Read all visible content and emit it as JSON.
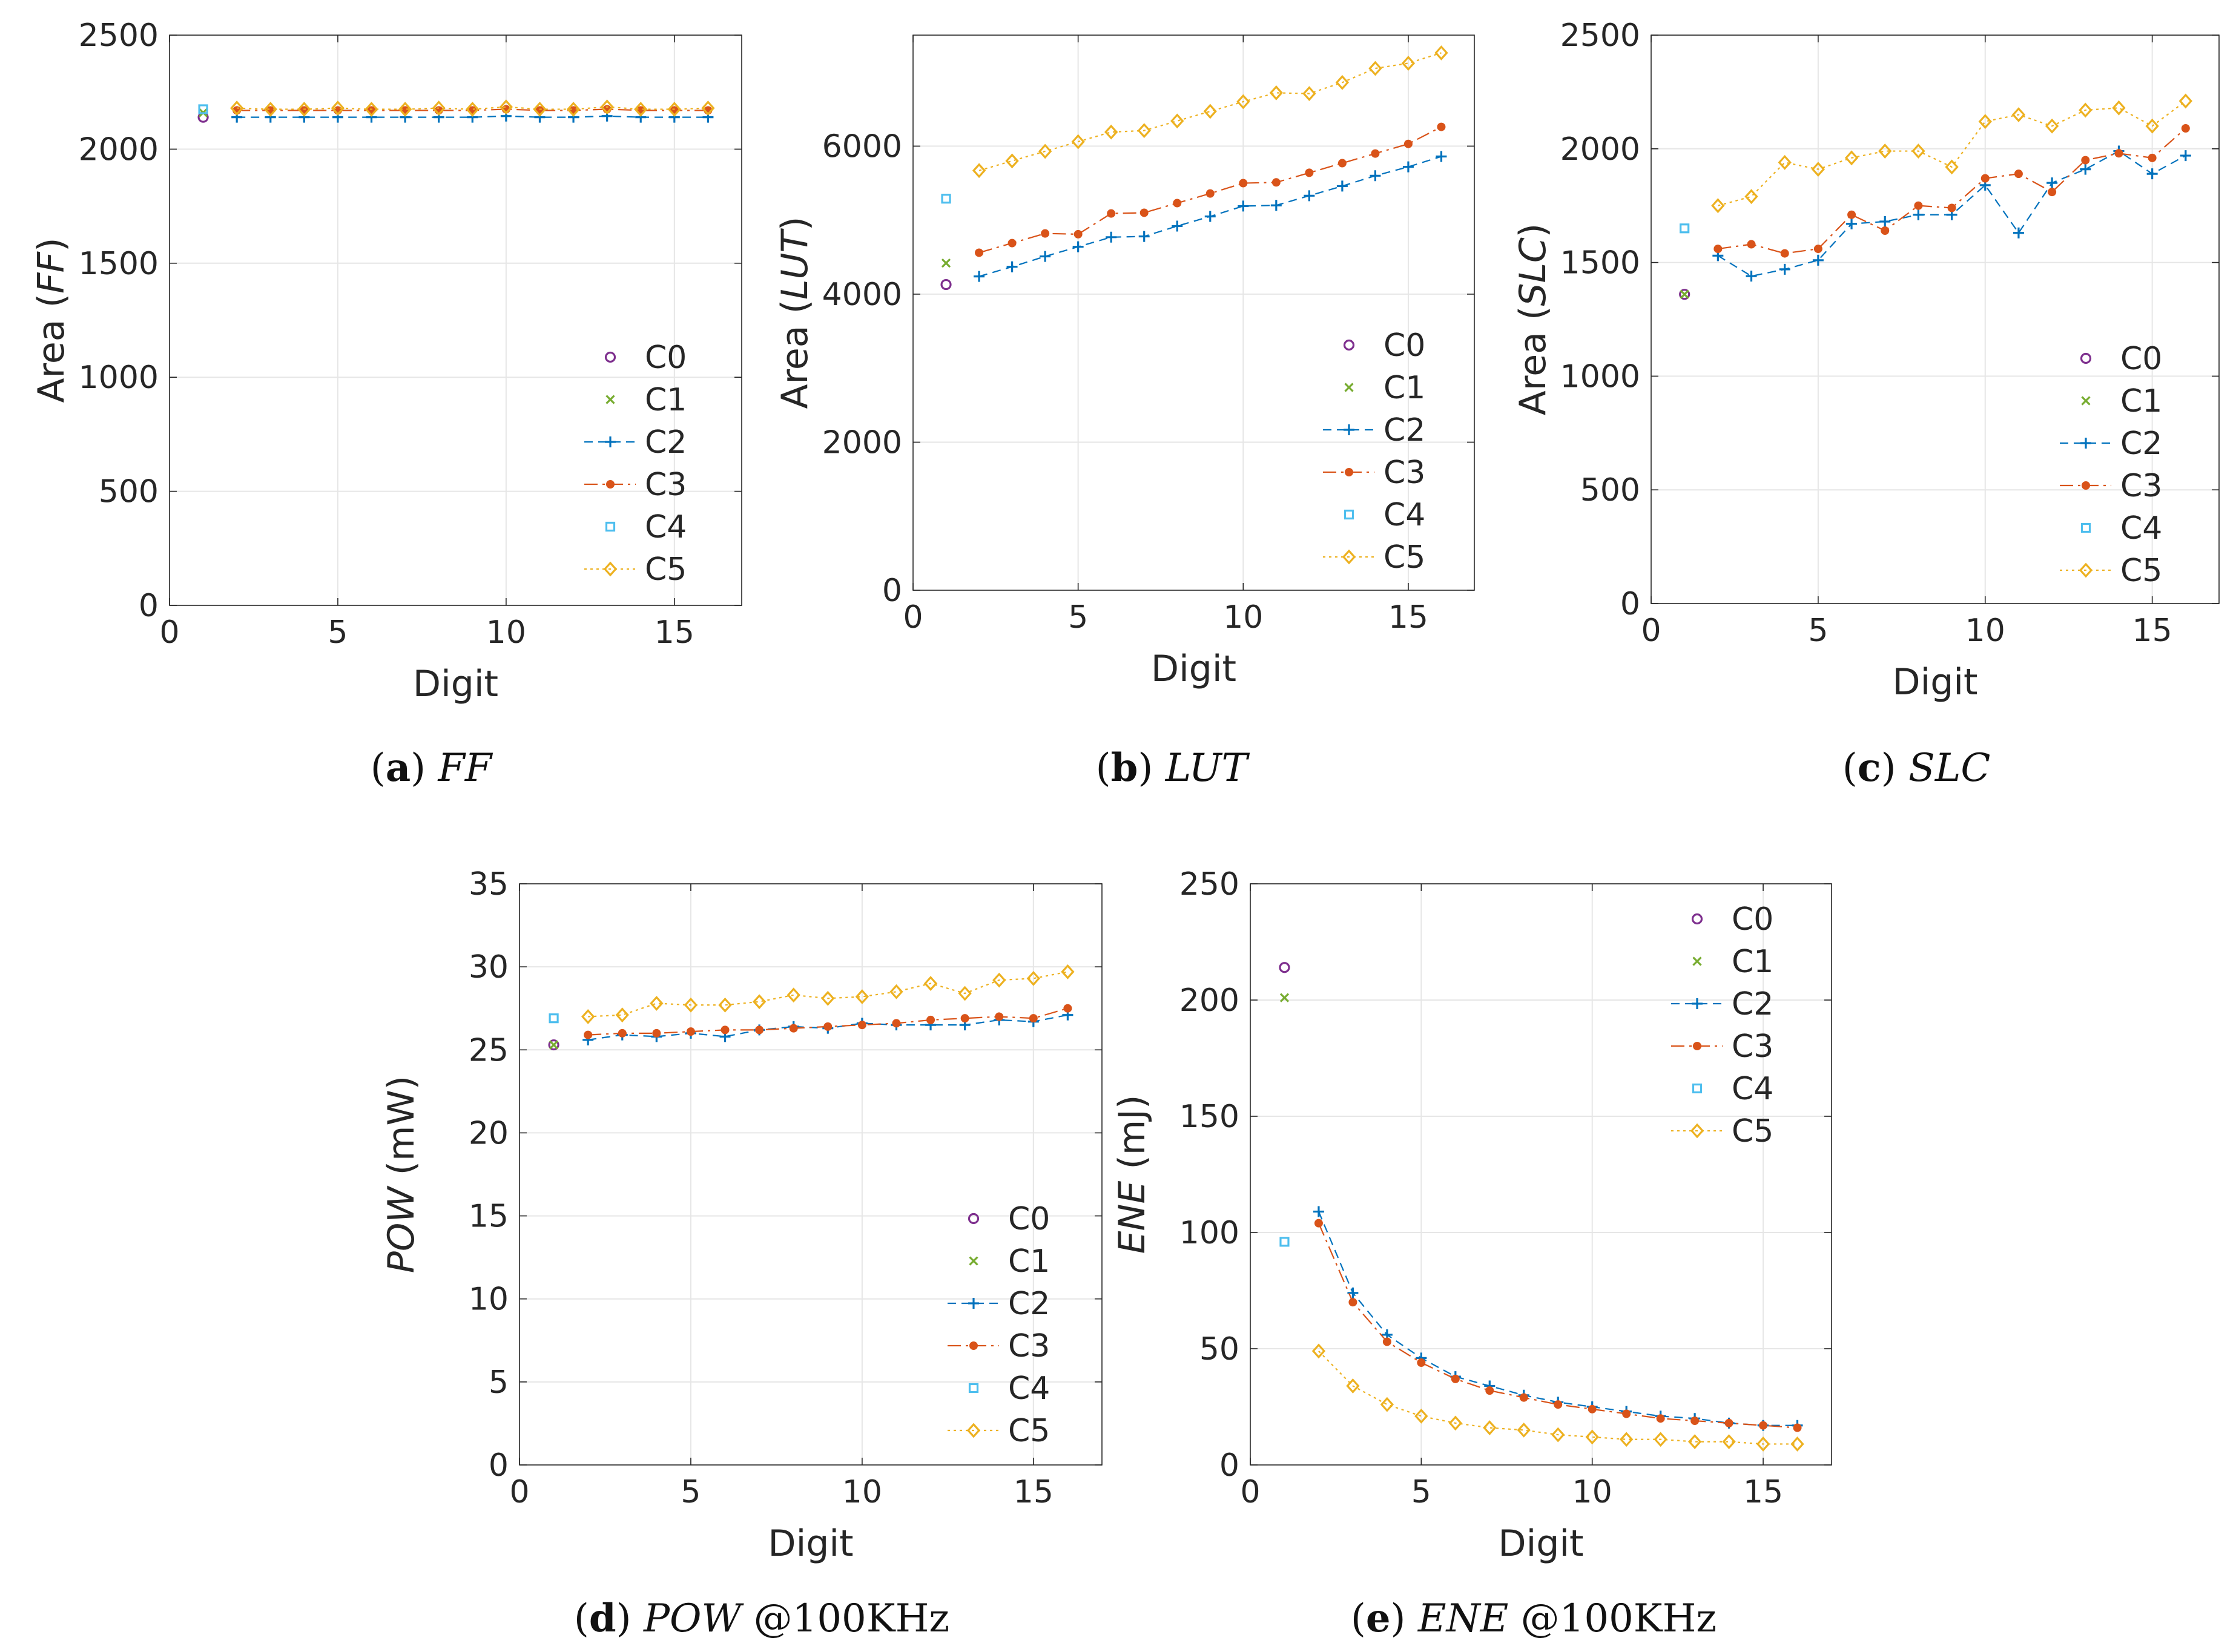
{
  "colors": {
    "C0": "#7e2f8e",
    "C1": "#77ac30",
    "C2": "#0072bd",
    "C3": "#d95319",
    "C4": "#4dbeee",
    "C5": "#edb120",
    "grid": "#e6e6e6",
    "axis": "#262626"
  },
  "chart_data": [
    {
      "id": "ff",
      "type": "line",
      "caption": {
        "label": "a",
        "rest": "FF"
      },
      "xlabel": "Digit",
      "ylabel_prefix": "Area (",
      "ylabel_italic": "FF",
      "ylabel_suffix": ")",
      "xlim": [
        0,
        17
      ],
      "ylim": [
        0,
        2500
      ],
      "xticks": [
        0,
        5,
        10,
        15
      ],
      "yticks": [
        0,
        500,
        1000,
        1500,
        2000,
        2500
      ],
      "legend_position": "bottom-right",
      "series": [
        {
          "name": "C0",
          "marker": "circle",
          "x": [
            1
          ],
          "y": [
            2140
          ]
        },
        {
          "name": "C1",
          "marker": "x",
          "x": [
            1
          ],
          "y": [
            2160
          ]
        },
        {
          "name": "C2",
          "marker": "plus",
          "x": [
            2,
            3,
            4,
            5,
            6,
            7,
            8,
            9,
            10,
            11,
            12,
            13,
            14,
            15,
            16
          ],
          "y": [
            2140,
            2140,
            2140,
            2140,
            2140,
            2140,
            2140,
            2140,
            2145,
            2140,
            2140,
            2145,
            2140,
            2140,
            2140
          ]
        },
        {
          "name": "C3",
          "marker": "dot",
          "x": [
            2,
            3,
            4,
            5,
            6,
            7,
            8,
            9,
            10,
            11,
            12,
            13,
            14,
            15,
            16
          ],
          "y": [
            2170,
            2170,
            2170,
            2170,
            2170,
            2170,
            2170,
            2170,
            2175,
            2170,
            2170,
            2175,
            2170,
            2170,
            2170
          ]
        },
        {
          "name": "C4",
          "marker": "square",
          "x": [
            1
          ],
          "y": [
            2175
          ]
        },
        {
          "name": "C5",
          "marker": "diamond",
          "x": [
            2,
            3,
            4,
            5,
            6,
            7,
            8,
            9,
            10,
            11,
            12,
            13,
            14,
            15,
            16
          ],
          "y": [
            2180,
            2175,
            2175,
            2180,
            2175,
            2175,
            2180,
            2175,
            2185,
            2175,
            2175,
            2185,
            2175,
            2175,
            2180
          ]
        }
      ]
    },
    {
      "id": "lut",
      "type": "line",
      "caption": {
        "label": "b",
        "rest": "LUT"
      },
      "xlabel": "Digit",
      "ylabel_prefix": "Area (",
      "ylabel_italic": "LUT",
      "ylabel_suffix": ")",
      "xlim": [
        0,
        17
      ],
      "ylim": [
        0,
        7500
      ],
      "xticks": [
        0,
        5,
        10,
        15
      ],
      "yticks": [
        0,
        2000,
        4000,
        6000
      ],
      "legend_position": "bottom-right",
      "series": [
        {
          "name": "C0",
          "marker": "circle",
          "x": [
            1
          ],
          "y": [
            4130
          ]
        },
        {
          "name": "C1",
          "marker": "x",
          "x": [
            1
          ],
          "y": [
            4420
          ]
        },
        {
          "name": "C2",
          "marker": "plus",
          "x": [
            2,
            3,
            4,
            5,
            6,
            7,
            8,
            9,
            10,
            11,
            12,
            13,
            14,
            15,
            16
          ],
          "y": [
            4240,
            4370,
            4510,
            4640,
            4770,
            4780,
            4920,
            5050,
            5190,
            5200,
            5330,
            5460,
            5600,
            5720,
            5860
          ]
        },
        {
          "name": "C3",
          "marker": "dot",
          "x": [
            2,
            3,
            4,
            5,
            6,
            7,
            8,
            9,
            10,
            11,
            12,
            13,
            14,
            15,
            16
          ],
          "y": [
            4560,
            4690,
            4820,
            4810,
            5090,
            5100,
            5230,
            5360,
            5500,
            5510,
            5640,
            5770,
            5900,
            6030,
            6260
          ]
        },
        {
          "name": "C4",
          "marker": "square",
          "x": [
            1
          ],
          "y": [
            5290
          ]
        },
        {
          "name": "C5",
          "marker": "diamond",
          "x": [
            2,
            3,
            4,
            5,
            6,
            7,
            8,
            9,
            10,
            11,
            12,
            13,
            14,
            15,
            16
          ],
          "y": [
            5670,
            5800,
            5930,
            6060,
            6190,
            6210,
            6340,
            6470,
            6600,
            6720,
            6710,
            6860,
            7050,
            7120,
            7260
          ]
        }
      ]
    },
    {
      "id": "slc",
      "type": "line",
      "caption": {
        "label": "c",
        "rest": "SLC"
      },
      "xlabel": "Digit",
      "ylabel_prefix": "Area (",
      "ylabel_italic": "SLC",
      "ylabel_suffix": ")",
      "xlim": [
        0,
        17
      ],
      "ylim": [
        0,
        2500
      ],
      "xticks": [
        0,
        5,
        10,
        15
      ],
      "yticks": [
        0,
        500,
        1000,
        1500,
        2000,
        2500
      ],
      "legend_position": "bottom-right",
      "series": [
        {
          "name": "C0",
          "marker": "circle",
          "x": [
            1
          ],
          "y": [
            1360
          ]
        },
        {
          "name": "C1",
          "marker": "x",
          "x": [
            1
          ],
          "y": [
            1360
          ]
        },
        {
          "name": "C2",
          "marker": "plus",
          "x": [
            2,
            3,
            4,
            5,
            6,
            7,
            8,
            9,
            10,
            11,
            12,
            13,
            14,
            15,
            16
          ],
          "y": [
            1530,
            1440,
            1470,
            1510,
            1670,
            1680,
            1710,
            1710,
            1840,
            1630,
            1850,
            1910,
            1990,
            1890,
            1970
          ]
        },
        {
          "name": "C3",
          "marker": "dot",
          "x": [
            2,
            3,
            4,
            5,
            6,
            7,
            8,
            9,
            10,
            11,
            12,
            13,
            14,
            15,
            16
          ],
          "y": [
            1560,
            1580,
            1540,
            1560,
            1710,
            1640,
            1750,
            1740,
            1870,
            1890,
            1810,
            1950,
            1980,
            1960,
            2090
          ]
        },
        {
          "name": "C4",
          "marker": "square",
          "x": [
            1
          ],
          "y": [
            1650
          ]
        },
        {
          "name": "C5",
          "marker": "diamond",
          "x": [
            2,
            3,
            4,
            5,
            6,
            7,
            8,
            9,
            10,
            11,
            12,
            13,
            14,
            15,
            16
          ],
          "y": [
            1750,
            1790,
            1940,
            1910,
            1960,
            1990,
            1990,
            1920,
            2120,
            2150,
            2100,
            2170,
            2180,
            2100,
            2210
          ]
        }
      ]
    },
    {
      "id": "pow",
      "type": "line",
      "caption": {
        "label": "d",
        "rest": "POW",
        "tail": " @100KHz"
      },
      "xlabel": "Digit",
      "ylabel_prefix": "",
      "ylabel_italic": "POW",
      "ylabel_suffix": " (mW)",
      "xlim": [
        0,
        17
      ],
      "ylim": [
        0,
        35
      ],
      "xticks": [
        0,
        5,
        10,
        15
      ],
      "yticks": [
        0,
        5,
        10,
        15,
        20,
        25,
        30,
        35
      ],
      "legend_position": "bottom-right",
      "series": [
        {
          "name": "C0",
          "marker": "circle",
          "x": [
            1
          ],
          "y": [
            25.3
          ]
        },
        {
          "name": "C1",
          "marker": "x",
          "x": [
            1
          ],
          "y": [
            25.3
          ]
        },
        {
          "name": "C2",
          "marker": "plus",
          "x": [
            2,
            3,
            4,
            5,
            6,
            7,
            8,
            9,
            10,
            11,
            12,
            13,
            14,
            15,
            16
          ],
          "y": [
            25.6,
            25.9,
            25.8,
            26.0,
            25.8,
            26.2,
            26.4,
            26.3,
            26.6,
            26.5,
            26.5,
            26.5,
            26.8,
            26.7,
            27.1
          ]
        },
        {
          "name": "C3",
          "marker": "dot",
          "x": [
            2,
            3,
            4,
            5,
            6,
            7,
            8,
            9,
            10,
            11,
            12,
            13,
            14,
            15,
            16
          ],
          "y": [
            25.9,
            26.0,
            26.0,
            26.1,
            26.2,
            26.2,
            26.3,
            26.4,
            26.5,
            26.6,
            26.8,
            26.9,
            27.0,
            26.9,
            27.5
          ]
        },
        {
          "name": "C4",
          "marker": "square",
          "x": [
            1
          ],
          "y": [
            26.9
          ]
        },
        {
          "name": "C5",
          "marker": "diamond",
          "x": [
            2,
            3,
            4,
            5,
            6,
            7,
            8,
            9,
            10,
            11,
            12,
            13,
            14,
            15,
            16
          ],
          "y": [
            27.0,
            27.1,
            27.8,
            27.7,
            27.7,
            27.9,
            28.3,
            28.1,
            28.2,
            28.5,
            29.0,
            28.4,
            29.2,
            29.3,
            29.7
          ]
        }
      ]
    },
    {
      "id": "ene",
      "type": "line",
      "caption": {
        "label": "e",
        "rest": "ENE",
        "tail": " @100KHz"
      },
      "xlabel": "Digit",
      "ylabel_prefix": "",
      "ylabel_italic": "ENE",
      "ylabel_suffix": " (mJ)",
      "xlim": [
        0,
        17
      ],
      "ylim": [
        0,
        250
      ],
      "xticks": [
        0,
        5,
        10,
        15
      ],
      "yticks": [
        0,
        50,
        100,
        150,
        200,
        250
      ],
      "legend_position": "top-right",
      "series": [
        {
          "name": "C0",
          "marker": "circle",
          "x": [
            1
          ],
          "y": [
            214
          ]
        },
        {
          "name": "C1",
          "marker": "x",
          "x": [
            1
          ],
          "y": [
            201
          ]
        },
        {
          "name": "C2",
          "marker": "plus",
          "x": [
            2,
            3,
            4,
            5,
            6,
            7,
            8,
            9,
            10,
            11,
            12,
            13,
            14,
            15,
            16
          ],
          "y": [
            109,
            74,
            56,
            46,
            38,
            34,
            30,
            27,
            25,
            23,
            21,
            20,
            18,
            17,
            17
          ]
        },
        {
          "name": "C3",
          "marker": "dot",
          "x": [
            2,
            3,
            4,
            5,
            6,
            7,
            8,
            9,
            10,
            11,
            12,
            13,
            14,
            15,
            16
          ],
          "y": [
            104,
            70,
            53,
            44,
            37,
            32,
            29,
            26,
            24,
            22,
            20,
            19,
            18,
            17,
            16
          ]
        },
        {
          "name": "C4",
          "marker": "square",
          "x": [
            1
          ],
          "y": [
            96
          ]
        },
        {
          "name": "C5",
          "marker": "diamond",
          "x": [
            2,
            3,
            4,
            5,
            6,
            7,
            8,
            9,
            10,
            11,
            12,
            13,
            14,
            15,
            16
          ],
          "y": [
            49,
            34,
            26,
            21,
            18,
            16,
            15,
            13,
            12,
            11,
            11,
            10,
            10,
            9,
            9
          ]
        }
      ]
    }
  ]
}
